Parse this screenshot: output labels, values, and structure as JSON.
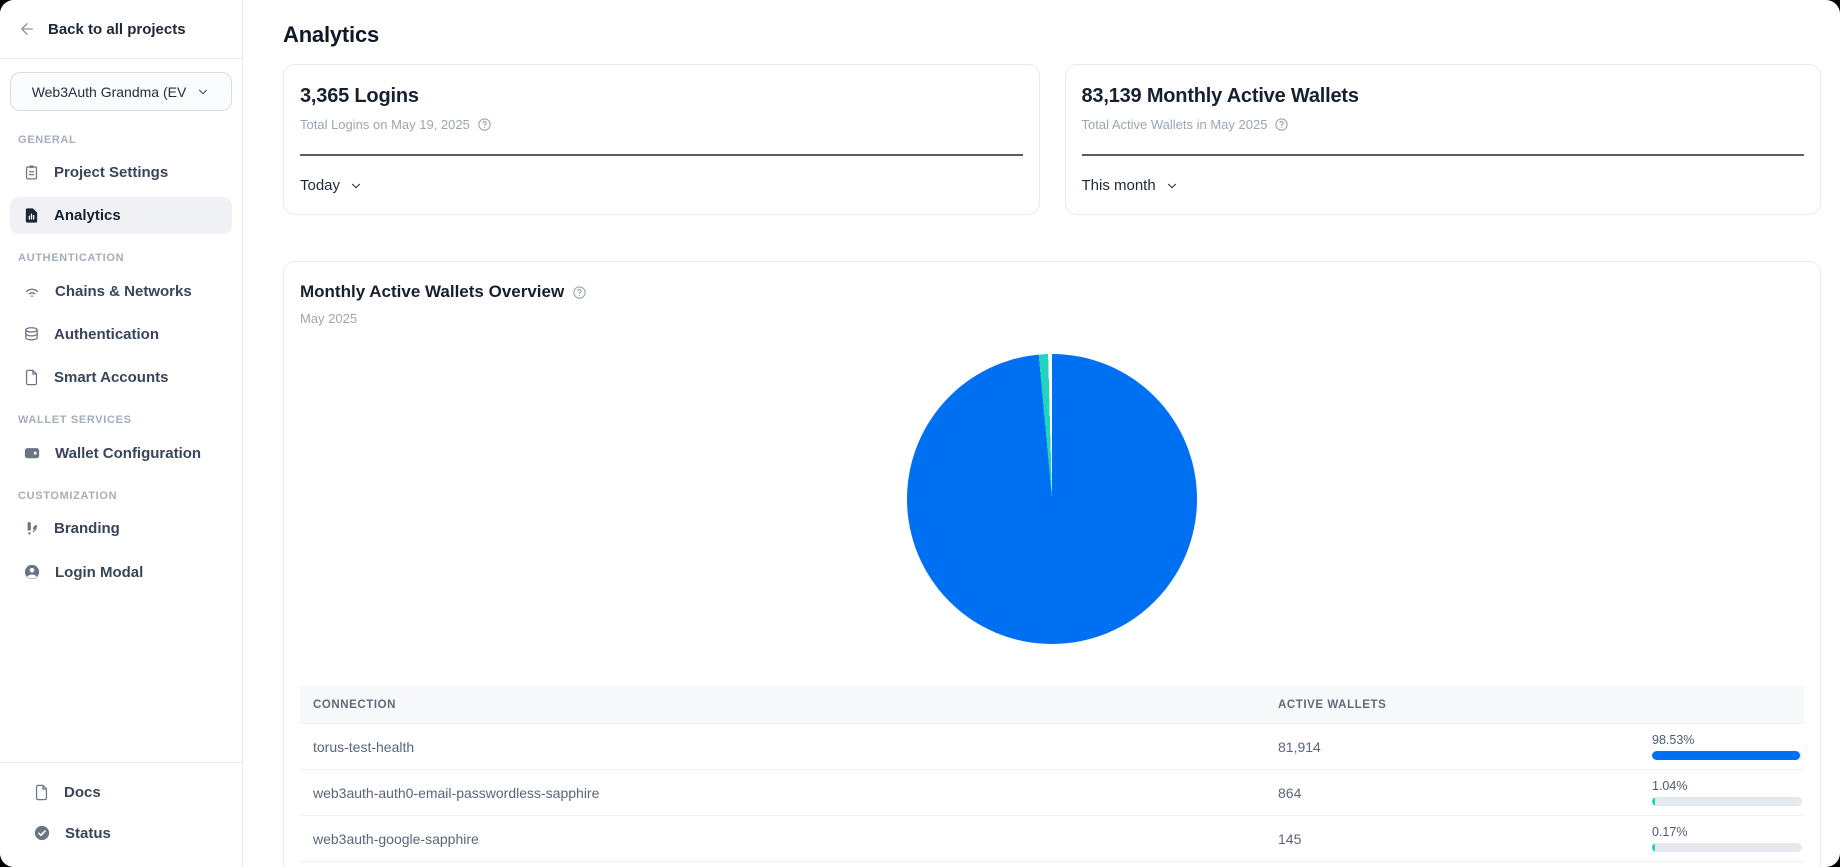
{
  "sidebar": {
    "back_label": "Back to all projects",
    "project_selector": {
      "value": "Web3Auth Grandma (EV"
    },
    "sections": [
      {
        "label": "GENERAL",
        "items": [
          {
            "label": "Project Settings",
            "icon": "clipboard-icon",
            "active": false
          },
          {
            "label": "Analytics",
            "icon": "analytics-doc-icon",
            "active": true
          }
        ]
      },
      {
        "label": "AUTHENTICATION",
        "items": [
          {
            "label": "Chains & Networks",
            "icon": "wifi-icon",
            "active": false
          },
          {
            "label": "Authentication",
            "icon": "database-icon",
            "active": false
          },
          {
            "label": "Smart Accounts",
            "icon": "file-icon",
            "active": false
          }
        ]
      },
      {
        "label": "WALLET SERVICES",
        "items": [
          {
            "label": "Wallet Configuration",
            "icon": "wallet-icon",
            "active": false
          }
        ]
      },
      {
        "label": "CUSTOMIZATION",
        "items": [
          {
            "label": "Branding",
            "icon": "brush-icon",
            "active": false
          },
          {
            "label": "Login Modal",
            "icon": "user-circle-icon",
            "active": false
          }
        ]
      }
    ],
    "footer_items": [
      {
        "label": "Docs",
        "icon": "file-icon"
      },
      {
        "label": "Status",
        "icon": "check-circle-icon"
      }
    ]
  },
  "header": {
    "title": "Analytics"
  },
  "stat_cards": [
    {
      "title": "3,365 Logins",
      "subtitle": "Total Logins on May 19, 2025",
      "range_label": "Today"
    },
    {
      "title": "83,139 Monthly Active Wallets",
      "subtitle": "Total Active Wallets in May 2025",
      "range_label": "This month"
    }
  ],
  "overview": {
    "title": "Monthly Active Wallets Overview",
    "subtitle": "May 2025"
  },
  "chart_data": {
    "type": "pie",
    "title": "Monthly Active Wallets Overview",
    "subtitle": "May 2025",
    "labels": [
      "torus-test-health",
      "web3auth-auth0-email-passwordless-sapphire",
      "web3auth-google-sapphire"
    ],
    "values": [
      81914,
      864,
      145
    ],
    "percentages": [
      98.53,
      1.04,
      0.17
    ],
    "colors": [
      "#0070F3",
      "#21D4BE",
      "#FFFFFF"
    ],
    "legend_position": "none"
  },
  "table": {
    "columns": [
      "CONNECTION",
      "ACTIVE WALLETS"
    ],
    "rows": [
      {
        "connection": "torus-test-health",
        "wallets": "81,914",
        "percent": "98.53%",
        "percent_value": 98.53,
        "bar_color": "#0070F3"
      },
      {
        "connection": "web3auth-auth0-email-passwordless-sapphire",
        "wallets": "864",
        "percent": "1.04%",
        "percent_value": 1.04,
        "bar_color": "#21D4BE"
      },
      {
        "connection": "web3auth-google-sapphire",
        "wallets": "145",
        "percent": "0.17%",
        "percent_value": 0.17,
        "bar_color": "#21D4BE"
      }
    ]
  }
}
